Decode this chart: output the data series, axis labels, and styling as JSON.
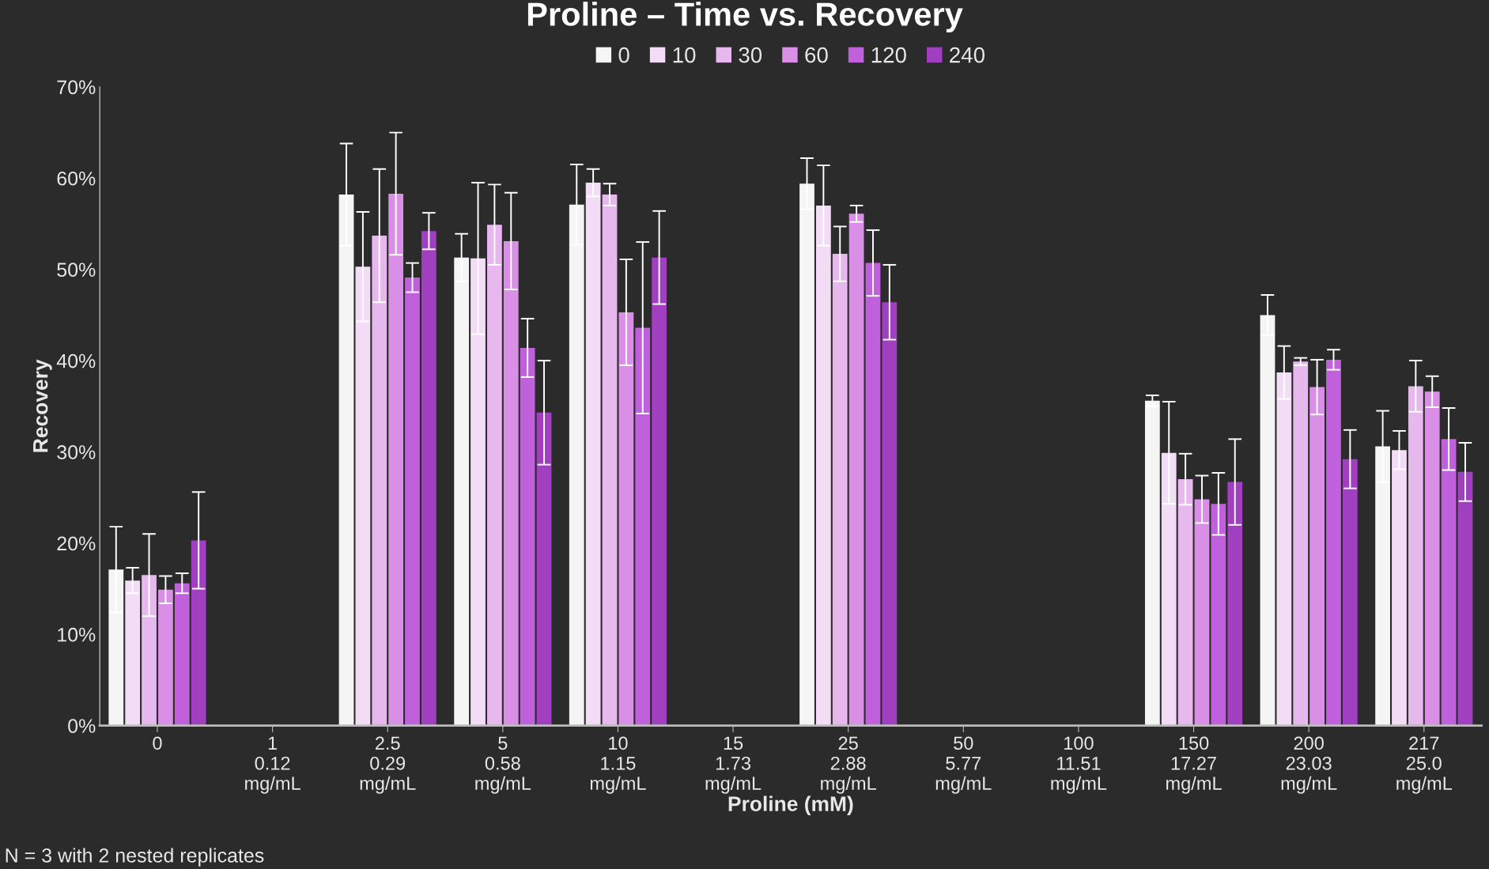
{
  "chart_data": {
    "type": "bar",
    "title": "Proline – Time vs. Recovery",
    "xlabel": "Proline (mM)",
    "ylabel": "Recovery",
    "categories": [
      "0",
      "1\n0.12\nmg/mL",
      "2.5\n0.29\nmg/mL",
      "5\n0.58\nmg/mL",
      "10\n1.15\nmg/mL",
      "15\n1.73\nmg/mL",
      "25\n2.88\nmg/mL",
      "50\n5.77\nmg/mL",
      "100\n11.51\nmg/mL",
      "150\n17.27\nmg/mL",
      "200\n23.03\nmg/mL",
      "217\n25.0\nmg/mL"
    ],
    "series": [
      {
        "name": "0",
        "color": "#f5f5f5",
        "values": [
          17.1,
          null,
          58.2,
          51.3,
          57.1,
          null,
          59.4,
          null,
          null,
          35.6,
          45.0,
          30.6
        ],
        "errors": [
          4.7,
          null,
          5.6,
          2.6,
          4.4,
          null,
          2.8,
          null,
          null,
          0.6,
          2.2,
          3.9
        ]
      },
      {
        "name": "10",
        "color": "#f3dcf5",
        "values": [
          15.9,
          null,
          50.3,
          51.2,
          59.5,
          null,
          57.0,
          null,
          null,
          29.9,
          38.7,
          30.2
        ],
        "errors": [
          1.4,
          null,
          6.0,
          8.3,
          1.5,
          null,
          4.4,
          null,
          null,
          5.6,
          2.9,
          2.1
        ]
      },
      {
        "name": "30",
        "color": "#e6b8ee",
        "values": [
          16.5,
          null,
          53.7,
          54.9,
          58.2,
          null,
          51.7,
          null,
          null,
          27.0,
          39.9,
          37.2
        ],
        "errors": [
          4.5,
          null,
          7.3,
          4.4,
          1.2,
          null,
          3.0,
          null,
          null,
          2.8,
          0.4,
          2.8
        ]
      },
      {
        "name": "60",
        "color": "#d98fe6",
        "values": [
          14.9,
          null,
          58.3,
          53.1,
          45.3,
          null,
          56.1,
          null,
          null,
          24.8,
          37.1,
          36.6
        ],
        "errors": [
          1.5,
          null,
          6.7,
          5.3,
          5.8,
          null,
          0.9,
          null,
          null,
          2.6,
          3.0,
          1.7
        ]
      },
      {
        "name": "120",
        "color": "#c060dd",
        "values": [
          15.6,
          null,
          49.1,
          41.4,
          43.6,
          null,
          50.7,
          null,
          null,
          24.3,
          40.1,
          31.4
        ],
        "errors": [
          1.1,
          null,
          1.6,
          3.2,
          9.4,
          null,
          3.6,
          null,
          null,
          3.4,
          1.1,
          3.4
        ]
      },
      {
        "name": "240",
        "color": "#a040c0",
        "values": [
          20.3,
          null,
          54.2,
          34.3,
          51.3,
          null,
          46.4,
          null,
          null,
          26.7,
          29.2,
          27.8
        ],
        "errors": [
          5.3,
          null,
          2.0,
          5.7,
          5.1,
          null,
          4.1,
          null,
          null,
          4.7,
          3.2,
          3.2
        ]
      }
    ],
    "ylim": [
      0,
      70
    ],
    "yticks": [
      {
        "value": 0,
        "label": "0%"
      },
      {
        "value": 10,
        "label": "10%"
      },
      {
        "value": 20,
        "label": "20%"
      },
      {
        "value": 30,
        "label": "30%"
      },
      {
        "value": 40,
        "label": "40%"
      },
      {
        "value": 50,
        "label": "50%"
      },
      {
        "value": 60,
        "label": "60%"
      },
      {
        "value": 70,
        "label": "70%"
      }
    ],
    "grid": false,
    "legend": "top",
    "annotations": [
      "N = 3 with 2 nested replicates"
    ]
  }
}
